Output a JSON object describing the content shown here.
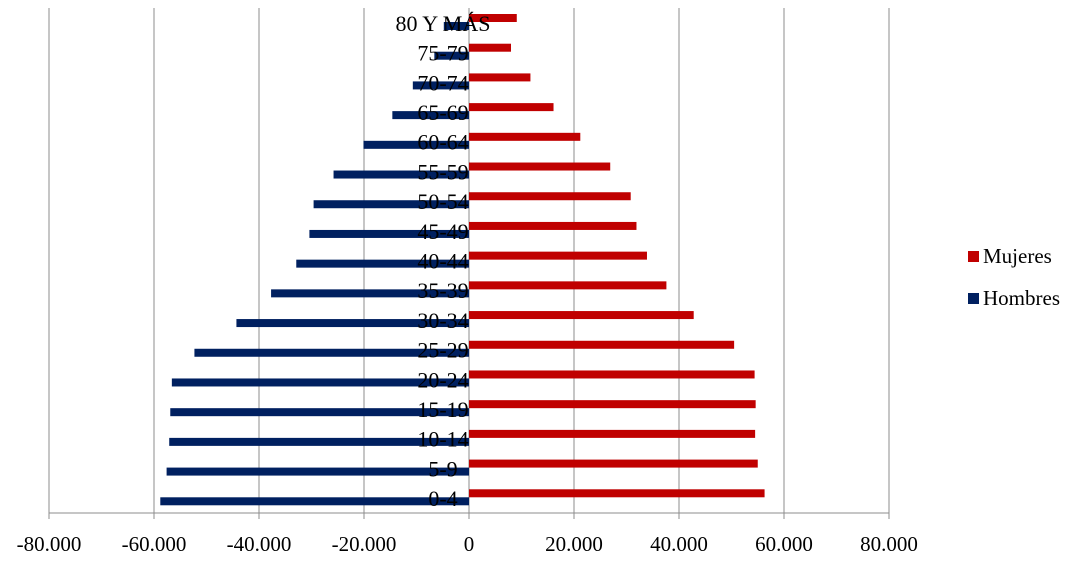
{
  "chart_data": {
    "type": "bar",
    "orientation": "horizontal",
    "categories": [
      "0-4",
      "5-9",
      "10-14",
      "15-19",
      "20-24",
      "25-29",
      "30-34",
      "35-39",
      "40-44",
      "45-49",
      "50-54",
      "55-59",
      "60-64",
      "65-69",
      "70-74",
      "75-79",
      "80 Y MÁS"
    ],
    "series": [
      {
        "name": "Mujeres",
        "color": "#c00000",
        "values": [
          56300,
          55000,
          54500,
          54600,
          54400,
          50500,
          42800,
          37600,
          33900,
          31900,
          30800,
          26900,
          21200,
          16100,
          11700,
          8000,
          9100
        ]
      },
      {
        "name": "Hombres",
        "color": "#002060",
        "values": [
          -58800,
          -57600,
          -57100,
          -56900,
          -56600,
          -52300,
          -44300,
          -37700,
          -32900,
          -30400,
          -29600,
          -25800,
          -20100,
          -14600,
          -10700,
          -6600,
          -4800
        ]
      }
    ],
    "xlim": [
      -80000,
      80000
    ],
    "xticks": [
      -80000,
      -60000,
      -40000,
      -20000,
      0,
      20000,
      40000,
      60000,
      80000
    ],
    "xtick_labels": [
      "-80.000",
      "-60.000",
      "-40.000",
      "-20.000",
      "0",
      "20.000",
      "40.000",
      "60.000",
      "80.000"
    ],
    "grid": "vertical",
    "legend_position": "right",
    "title": "",
    "xlabel": "",
    "ylabel": ""
  }
}
